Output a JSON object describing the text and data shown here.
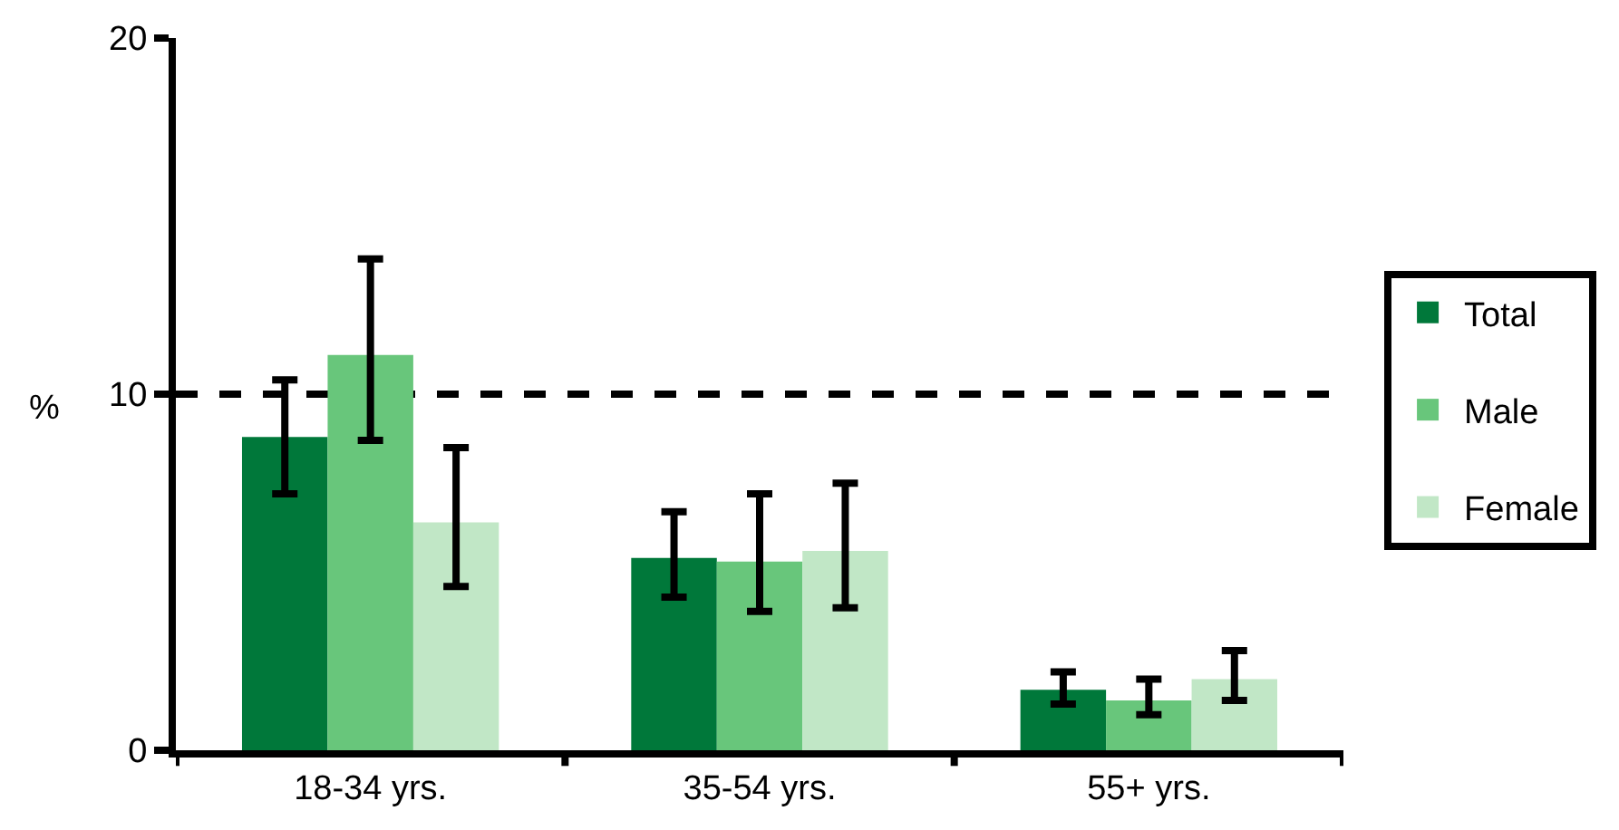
{
  "chart_data": {
    "type": "bar",
    "ylabel": "%",
    "categories": [
      "18-34 yrs.",
      "35-54 yrs.",
      "55+ yrs."
    ],
    "series": [
      {
        "name": "Total",
        "color": "#00783a",
        "values": [
          8.8,
          5.4,
          1.7
        ],
        "errors": [
          [
            7.2,
            10.4
          ],
          [
            4.3,
            6.7
          ],
          [
            1.3,
            2.2
          ]
        ]
      },
      {
        "name": "Male",
        "color": "#68c67b",
        "values": [
          11.1,
          5.3,
          1.4
        ],
        "errors": [
          [
            8.7,
            13.8
          ],
          [
            3.9,
            7.2
          ],
          [
            1.0,
            2.0
          ]
        ]
      },
      {
        "name": "Female",
        "color": "#c1e7c6",
        "values": [
          6.4,
          5.6,
          2.0
        ],
        "errors": [
          [
            4.6,
            8.5
          ],
          [
            4.0,
            7.5
          ],
          [
            1.4,
            2.8
          ]
        ]
      }
    ],
    "ylim": [
      0,
      20
    ],
    "yticks": [
      0,
      10,
      20
    ],
    "grid": "y",
    "legend": "right"
  }
}
